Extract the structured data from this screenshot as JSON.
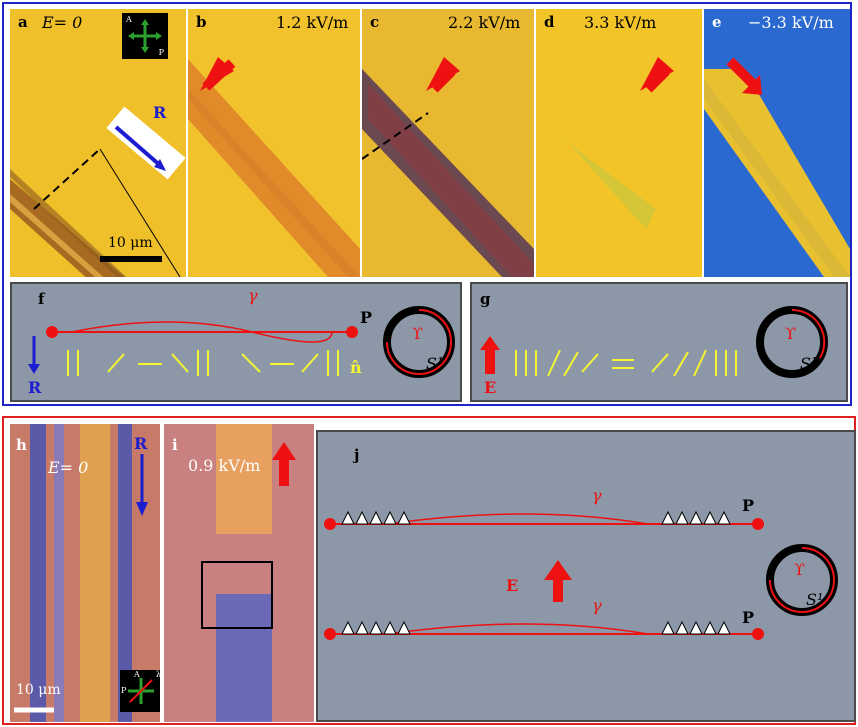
{
  "top": {
    "panel_a": {
      "label": "a",
      "field": "E= 0",
      "direction_label": "R",
      "scalebar": "10 μm",
      "crossed_polarizer_labels": [
        "A",
        "P"
      ]
    },
    "panel_b": {
      "label": "b",
      "field": "1.2 kV/m"
    },
    "panel_c": {
      "label": "c",
      "field": "2.2 kV/m"
    },
    "panel_d": {
      "label": "d",
      "field": "3.3 kV/m"
    },
    "panel_e": {
      "label": "e",
      "field": "−3.3 kV/m"
    },
    "panel_f": {
      "label": "f",
      "curve_label": "γ",
      "endpoint": "P",
      "director": "n̂",
      "axis": "R",
      "circle_inner": "ϒ",
      "circle_space": "S¹"
    },
    "panel_g": {
      "label": "g",
      "axis": "E",
      "circle_inner": "ϒ",
      "circle_space": "S¹"
    }
  },
  "bottom": {
    "panel_h": {
      "label": "h",
      "field": "E= 0",
      "direction_label": "R",
      "scalebar": "10 μm",
      "polarizer_labels": [
        "A",
        "P",
        "λ"
      ]
    },
    "panel_i": {
      "label": "i",
      "field": "0.9 kV/m"
    },
    "panel_j": {
      "label": "j",
      "curve_label_top": "γ",
      "endpoint_top": "P",
      "axis": "E",
      "curve_label_bottom": "γ",
      "endpoint_bottom": "P",
      "circle_inner": "ϒ",
      "circle_space": "S¹"
    }
  },
  "colors": {
    "blue_frame": "#1f24c8",
    "red_frame": "#e02020",
    "yellow_bg": "#f0c02a",
    "arrow_red": "#ee1111",
    "director_yellow": "#f5f530"
  }
}
